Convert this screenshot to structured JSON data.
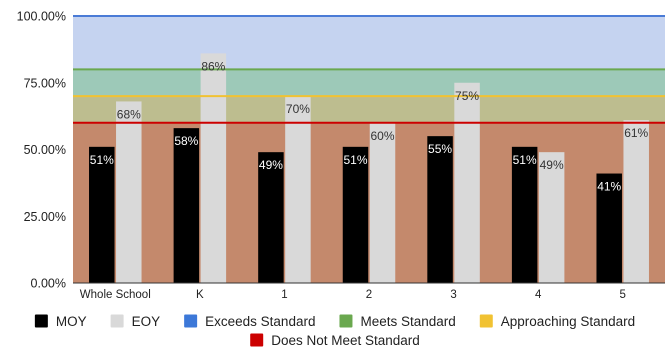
{
  "chart_data": {
    "type": "bar",
    "categories": [
      "Whole School",
      "K",
      "1",
      "2",
      "3",
      "4",
      "5"
    ],
    "series": [
      {
        "name": "MOY",
        "color": "#000000",
        "values": [
          51,
          58,
          49,
          51,
          55,
          51,
          41
        ],
        "labels": [
          "51%",
          "58%",
          "49%",
          "51%",
          "55%",
          "51%",
          "41%"
        ]
      },
      {
        "name": "EOY",
        "color": "#d9d9d9",
        "values": [
          68,
          86,
          70,
          60,
          75,
          49,
          61
        ],
        "labels": [
          "68%",
          "86%",
          "70%",
          "60%",
          "75%",
          "49%",
          "61%"
        ]
      }
    ],
    "y_ticks": [
      {
        "value": 0,
        "label": "0.00%"
      },
      {
        "value": 25,
        "label": "25.00%"
      },
      {
        "value": 50,
        "label": "50.00%"
      },
      {
        "value": 75,
        "label": "75.00%"
      },
      {
        "value": 100,
        "label": "100.00%"
      }
    ],
    "ylim": [
      0,
      100
    ],
    "bands": [
      {
        "name": "Exceeds Standard",
        "color": "#4a7bd6",
        "fill": "#c5d3f0",
        "from": 80,
        "to": 100,
        "line": 100
      },
      {
        "name": "Meets Standard",
        "color": "#6aa84f",
        "fill": "#9dc9b8",
        "from": 70,
        "to": 80,
        "line": 80
      },
      {
        "name": "Approaching Standard",
        "color": "#f1c232",
        "fill": "#bdbd8f",
        "from": 60,
        "to": 70,
        "line": 70
      },
      {
        "name": "Does Not Meet Standard",
        "color": "#cc0000",
        "fill": "#c4896c",
        "from": 0,
        "to": 60,
        "line": 60
      }
    ],
    "legend": {
      "placement": "bottom",
      "items": [
        {
          "label": "MOY",
          "color": "#000000"
        },
        {
          "label": "EOY",
          "color": "#d9d9d9"
        },
        {
          "label": "Exceeds Standard",
          "color": "#3c78d8"
        },
        {
          "label": "Meets Standard",
          "color": "#6aa84f"
        },
        {
          "label": "Approaching Standard",
          "color": "#f1c232"
        },
        {
          "label": "Does Not Meet Standard",
          "color": "#cc0000"
        }
      ]
    }
  }
}
